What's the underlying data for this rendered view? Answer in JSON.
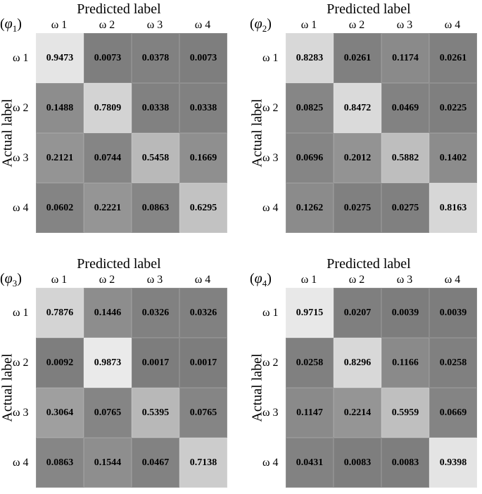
{
  "chart_data": [
    {
      "type": "heatmap",
      "panel_label": "φ",
      "panel_sub": "1",
      "title": "Predicted label",
      "ylabel": "Actual label",
      "x_categories": [
        "ω 1",
        "ω 2",
        "ω 3",
        "ω 4"
      ],
      "y_categories": [
        "ω 1",
        "ω 2",
        "ω 3",
        "ω 4"
      ],
      "values": [
        [
          0.9473,
          0.0073,
          0.0378,
          0.0073
        ],
        [
          0.1488,
          0.7809,
          0.0338,
          0.0338
        ],
        [
          0.2121,
          0.0744,
          0.5458,
          0.1669
        ],
        [
          0.0602,
          0.2221,
          0.0863,
          0.6295
        ]
      ],
      "colormap": "grayscale, higher value lighter"
    },
    {
      "type": "heatmap",
      "panel_label": "φ",
      "panel_sub": "2",
      "title": "Predicted label",
      "ylabel": "Actual label",
      "x_categories": [
        "ω 1",
        "ω 2",
        "ω 3",
        "ω 4"
      ],
      "y_categories": [
        "ω 1",
        "ω 2",
        "ω 3",
        "ω 4"
      ],
      "values": [
        [
          0.8283,
          0.0261,
          0.1174,
          0.0261
        ],
        [
          0.0825,
          0.8472,
          0.0469,
          0.0225
        ],
        [
          0.0696,
          0.2012,
          0.5882,
          0.1402
        ],
        [
          0.1262,
          0.0275,
          0.0275,
          0.8163
        ]
      ],
      "colormap": "grayscale, higher value lighter"
    },
    {
      "type": "heatmap",
      "panel_label": "φ",
      "panel_sub": "3",
      "title": "Predicted label",
      "ylabel": "Actual label",
      "x_categories": [
        "ω 1",
        "ω 2",
        "ω 3",
        "ω 4"
      ],
      "y_categories": [
        "ω 1",
        "ω 2",
        "ω 3",
        "ω 4"
      ],
      "values": [
        [
          0.7876,
          0.1446,
          0.0326,
          0.0326
        ],
        [
          0.0092,
          0.9873,
          0.0017,
          0.0017
        ],
        [
          0.3064,
          0.0765,
          0.5395,
          0.0765
        ],
        [
          0.0863,
          0.1544,
          0.0467,
          0.7138
        ]
      ],
      "colormap": "grayscale, higher value lighter"
    },
    {
      "type": "heatmap",
      "panel_label": "φ",
      "panel_sub": "4",
      "title": "Predicted label",
      "ylabel": "Actual label",
      "x_categories": [
        "ω 1",
        "ω 2",
        "ω 3",
        "ω 4"
      ],
      "y_categories": [
        "ω 1",
        "ω 2",
        "ω 3",
        "ω 4"
      ],
      "values": [
        [
          0.9715,
          0.0207,
          0.0039,
          0.0039
        ],
        [
          0.0258,
          0.8296,
          0.1166,
          0.0258
        ],
        [
          0.1147,
          0.2214,
          0.5959,
          0.0669
        ],
        [
          0.0431,
          0.0083,
          0.0083,
          0.9398
        ]
      ],
      "colormap": "grayscale, higher value lighter"
    }
  ]
}
